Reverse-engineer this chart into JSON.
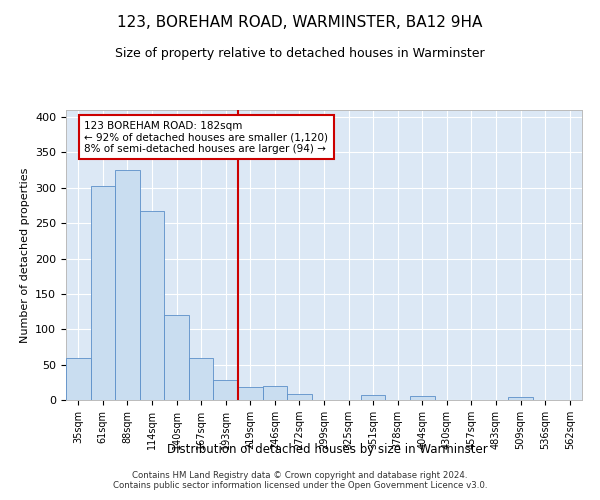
{
  "title": "123, BOREHAM ROAD, WARMINSTER, BA12 9HA",
  "subtitle": "Size of property relative to detached houses in Warminster",
  "xlabel": "Distribution of detached houses by size in Warminster",
  "ylabel": "Number of detached properties",
  "bins": [
    "35sqm",
    "61sqm",
    "88sqm",
    "114sqm",
    "140sqm",
    "167sqm",
    "193sqm",
    "219sqm",
    "246sqm",
    "272sqm",
    "299sqm",
    "325sqm",
    "351sqm",
    "378sqm",
    "404sqm",
    "430sqm",
    "457sqm",
    "483sqm",
    "509sqm",
    "536sqm",
    "562sqm"
  ],
  "bar_values": [
    60,
    303,
    325,
    267,
    120,
    60,
    28,
    19,
    20,
    9,
    0,
    0,
    7,
    0,
    6,
    0,
    0,
    0,
    4,
    0,
    0
  ],
  "bar_color": "#c9ddf0",
  "bar_edgecolor": "#5b8fc9",
  "property_line_color": "#cc0000",
  "property_line_bin": 6,
  "annotation_text": "123 BOREHAM ROAD: 182sqm\n← 92% of detached houses are smaller (1,120)\n8% of semi-detached houses are larger (94) →",
  "annotation_box_edgecolor": "#cc0000",
  "annotation_box_facecolor": "#ffffff",
  "footer_line1": "Contains HM Land Registry data © Crown copyright and database right 2024.",
  "footer_line2": "Contains public sector information licensed under the Open Government Licence v3.0.",
  "yticks": [
    0,
    50,
    100,
    150,
    200,
    250,
    300,
    350,
    400
  ],
  "ylim": [
    0,
    410
  ],
  "plot_background": "#dce8f5",
  "grid_color": "#ffffff"
}
